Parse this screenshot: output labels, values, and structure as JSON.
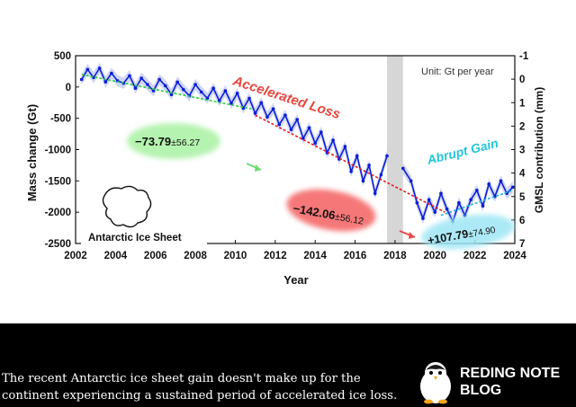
{
  "chart_data": {
    "type": "line",
    "xlabel": "Year",
    "ylabel": "Mass change (Gt)",
    "ylabel_right": "GMSL contribution (mm)",
    "xlim": [
      2002,
      2024
    ],
    "ylim": [
      -2500,
      500
    ],
    "y2lim": [
      7,
      -1
    ],
    "x_ticks": [
      "2002",
      "2004",
      "2006",
      "2008",
      "2010",
      "2012",
      "2014",
      "2016",
      "2018",
      "2020",
      "2022",
      "2024"
    ],
    "y_ticks": [
      "500",
      "0",
      "-500",
      "-1000",
      "-1500",
      "-2000",
      "-2500"
    ],
    "y2_ticks": [
      "-1",
      "0",
      "1",
      "2",
      "3",
      "4",
      "5",
      "6",
      "7"
    ],
    "unit_note": "Unit: Gt per year",
    "inset_label": "Antarctic Ice Sheet",
    "data_gap": [
      2017.6,
      2018.4
    ],
    "series": [
      {
        "color": "#0a1fd6",
        "x": [
          2002.3,
          2002.6,
          2002.9,
          2003.2,
          2003.5,
          2003.8,
          2004.1,
          2004.4,
          2004.7,
          2005.0,
          2005.3,
          2005.6,
          2005.9,
          2006.2,
          2006.5,
          2006.8,
          2007.1,
          2007.4,
          2007.7,
          2008.0,
          2008.3,
          2008.6,
          2008.9,
          2009.2,
          2009.5,
          2009.8,
          2010.1,
          2010.4,
          2010.7,
          2011.0,
          2011.3,
          2011.6,
          2011.9,
          2012.2,
          2012.5,
          2012.8,
          2013.1,
          2013.4,
          2013.7,
          2014.0,
          2014.3,
          2014.6,
          2014.9,
          2015.2,
          2015.5,
          2015.8,
          2016.1,
          2016.4,
          2016.7,
          2017.0,
          2017.3,
          2017.6
        ],
        "values": [
          120,
          280,
          150,
          300,
          80,
          220,
          100,
          60,
          180,
          -20,
          140,
          40,
          -60,
          120,
          20,
          -120,
          80,
          -40,
          -140,
          40,
          -80,
          -180,
          -20,
          -220,
          -60,
          -260,
          -100,
          -340,
          -180,
          -420,
          -250,
          -480,
          -350,
          -600,
          -450,
          -680,
          -520,
          -820,
          -650,
          -900,
          -720,
          -1050,
          -850,
          -1150,
          -950,
          -1350,
          -1100,
          -1500,
          -1250,
          -1700,
          -1400,
          -1100
        ]
      },
      {
        "color": "#0a1fd6",
        "x": [
          2018.4,
          2018.8,
          2019.1,
          2019.4,
          2019.7,
          2020.0,
          2020.3,
          2020.6,
          2020.9,
          2021.2,
          2021.5,
          2021.8,
          2022.1,
          2022.4,
          2022.7,
          2023.0,
          2023.3,
          2023.6,
          2023.9
        ],
        "values": [
          -1300,
          -1500,
          -1850,
          -2100,
          -1800,
          -2000,
          -1700,
          -1950,
          -2150,
          -1850,
          -2050,
          -1800,
          -1650,
          -1900,
          -1550,
          -1750,
          -1500,
          -1700,
          -1600
        ]
      }
    ],
    "trends": [
      {
        "label": "−73.79",
        "uncertainty": "±56.27",
        "color": "#2ecc40",
        "from": [
          2002.3,
          200
        ],
        "to": [
          2010.8,
          -350
        ]
      },
      {
        "label": "−142.06",
        "uncertainty": "±56.12",
        "color": "#e02020",
        "from": [
          2011.0,
          -450
        ],
        "to": [
          2020.5,
          -2000
        ]
      },
      {
        "label": "+107.79",
        "uncertainty": "±74.90",
        "color": "#1fb8d8",
        "from": [
          2020.3,
          -2050
        ],
        "to": [
          2023.9,
          -1650
        ]
      }
    ],
    "annotations": {
      "accelerated_loss": "Accelerated Loss",
      "abrupt_gain": "Abrupt Gain"
    }
  },
  "caption": "The recent Antarctic ice sheet gain doesn't make up for the continent experiencing a sustained period of accelerated ice loss.",
  "brand": {
    "line1": "REDING NOTE",
    "line2": "BLOG",
    "logo_icon": "penguin-icon"
  }
}
